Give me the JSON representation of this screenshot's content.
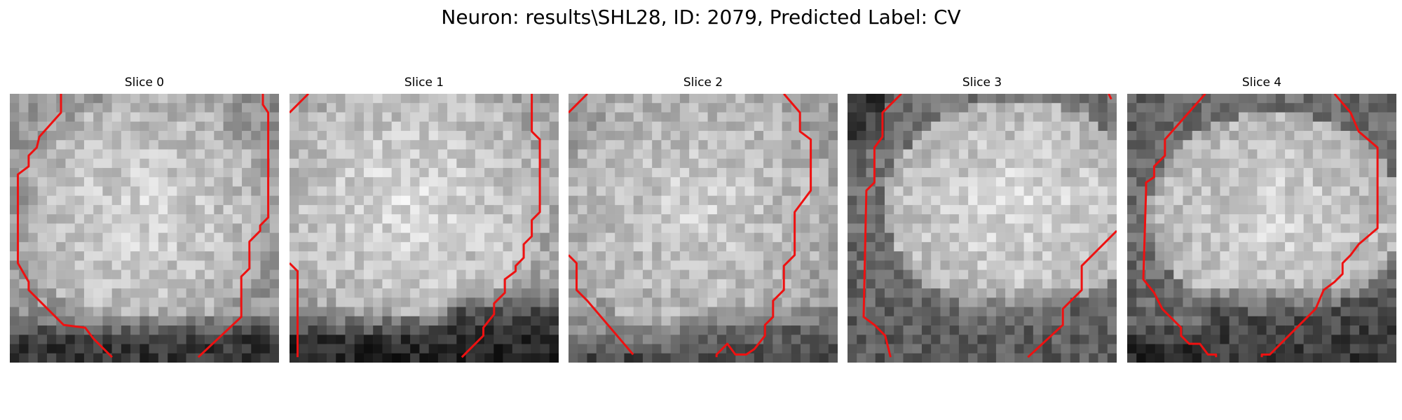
{
  "figure": {
    "title": "Neuron: results\\SHL28, ID: 2079, Predicted Label: CV"
  },
  "panels": [
    {
      "title": "Slice 0"
    },
    {
      "title": "Slice 1"
    },
    {
      "title": "Slice 2"
    },
    {
      "title": "Slice 3"
    },
    {
      "title": "Slice 4"
    }
  ],
  "colors": {
    "contour": "#ee1111",
    "background": "#ffffff"
  }
}
